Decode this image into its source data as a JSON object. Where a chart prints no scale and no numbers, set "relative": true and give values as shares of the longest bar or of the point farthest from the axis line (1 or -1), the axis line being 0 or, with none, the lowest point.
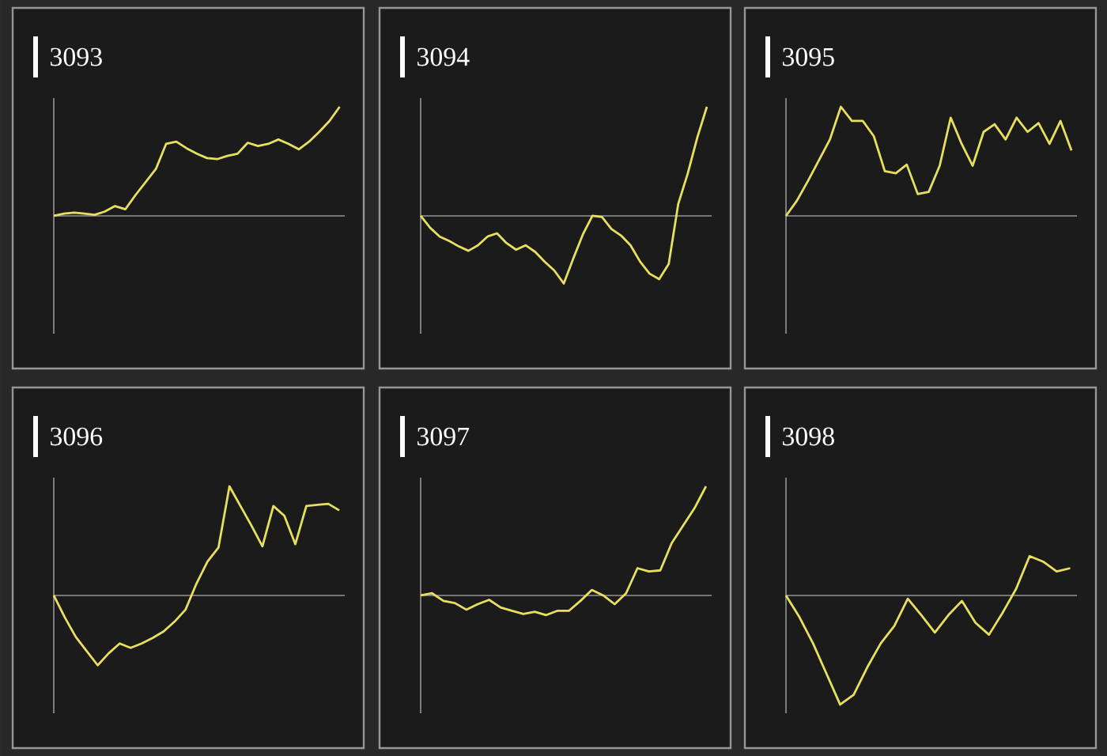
{
  "chart_data": [
    {
      "type": "line",
      "title": "3093",
      "relative": true,
      "color": "#e8e05c",
      "categories": [
        null,
        null,
        null,
        null,
        null,
        null,
        null,
        null,
        null,
        null,
        null,
        null,
        null,
        null,
        null,
        null,
        null,
        null,
        null,
        null,
        null,
        null,
        null,
        null,
        null,
        null,
        null,
        null,
        null
      ],
      "values": [
        0,
        0.02,
        0.03,
        0.02,
        0.01,
        0.04,
        0.09,
        0.06,
        0.19,
        0.31,
        0.43,
        0.66,
        0.68,
        0.62,
        0.57,
        0.53,
        0.52,
        0.55,
        0.57,
        0.67,
        0.64,
        0.66,
        0.7,
        0.66,
        0.61,
        0.68,
        0.77,
        0.87,
        1
      ]
    },
    {
      "type": "line",
      "title": "3094",
      "relative": true,
      "color": "#e8e05c",
      "categories": [
        null,
        null,
        null,
        null,
        null,
        null,
        null,
        null,
        null,
        null,
        null,
        null,
        null,
        null,
        null,
        null,
        null,
        null,
        null,
        null,
        null,
        null,
        null,
        null,
        null,
        null,
        null,
        null,
        null,
        null,
        null
      ],
      "values": [
        0,
        -0.11,
        -0.19,
        -0.23,
        -0.28,
        -0.32,
        -0.27,
        -0.19,
        -0.16,
        -0.25,
        -0.31,
        -0.27,
        -0.33,
        -0.42,
        -0.5,
        -0.62,
        -0.39,
        -0.17,
        0,
        -0.01,
        -0.12,
        -0.18,
        -0.27,
        -0.42,
        -0.53,
        -0.58,
        -0.44,
        0.11,
        0.39,
        0.72,
        1
      ]
    },
    {
      "type": "line",
      "title": "3095",
      "relative": true,
      "color": "#e8e05c",
      "categories": [
        null,
        null,
        null,
        null,
        null,
        null,
        null,
        null,
        null,
        null,
        null,
        null,
        null,
        null,
        null,
        null,
        null,
        null,
        null,
        null,
        null,
        null,
        null,
        null,
        null,
        null,
        null
      ],
      "values": [
        0,
        0.14,
        0.32,
        0.51,
        0.7,
        1,
        0.87,
        0.87,
        0.73,
        0.41,
        0.39,
        0.47,
        0.2,
        0.22,
        0.46,
        0.9,
        0.66,
        0.46,
        0.77,
        0.84,
        0.7,
        0.9,
        0.77,
        0.85,
        0.66,
        0.87,
        0.6
      ]
    },
    {
      "type": "line",
      "title": "3096",
      "relative": true,
      "color": "#e8e05c",
      "categories": [
        null,
        null,
        null,
        null,
        null,
        null,
        null,
        null,
        null,
        null,
        null,
        null,
        null,
        null,
        null,
        null,
        null,
        null,
        null,
        null,
        null,
        null,
        null,
        null,
        null,
        null,
        null
      ],
      "values": [
        0,
        -0.2,
        -0.38,
        -0.51,
        -0.64,
        -0.53,
        -0.44,
        -0.48,
        -0.44,
        -0.39,
        -0.33,
        -0.24,
        -0.13,
        0.11,
        0.31,
        0.44,
        1,
        0.82,
        0.64,
        0.45,
        0.82,
        0.73,
        0.47,
        0.82,
        0.83,
        0.84,
        0.78
      ]
    },
    {
      "type": "line",
      "title": "3097",
      "relative": true,
      "color": "#e8e05c",
      "categories": [
        null,
        null,
        null,
        null,
        null,
        null,
        null,
        null,
        null,
        null,
        null,
        null,
        null,
        null,
        null,
        null,
        null,
        null,
        null,
        null,
        null,
        null,
        null,
        null,
        null,
        null
      ],
      "values": [
        0,
        0.02,
        -0.05,
        -0.07,
        -0.13,
        -0.08,
        -0.04,
        -0.11,
        -0.14,
        -0.17,
        -0.15,
        -0.18,
        -0.14,
        -0.14,
        -0.05,
        0.05,
        0,
        -0.08,
        0.02,
        0.25,
        0.22,
        0.23,
        0.48,
        0.64,
        0.8,
        1
      ]
    },
    {
      "type": "line",
      "title": "3098",
      "relative": true,
      "color": "#e8e05c",
      "categories": [
        null,
        null,
        null,
        null,
        null,
        null,
        null,
        null,
        null,
        null,
        null,
        null,
        null,
        null,
        null,
        null,
        null,
        null,
        null,
        null,
        null,
        null
      ],
      "values": [
        0,
        -0.2,
        -0.44,
        -0.72,
        -1,
        -0.91,
        -0.66,
        -0.44,
        -0.28,
        -0.03,
        -0.18,
        -0.34,
        -0.18,
        -0.05,
        -0.25,
        -0.36,
        -0.16,
        0.06,
        0.36,
        0.31,
        0.22,
        0.25
      ]
    }
  ]
}
